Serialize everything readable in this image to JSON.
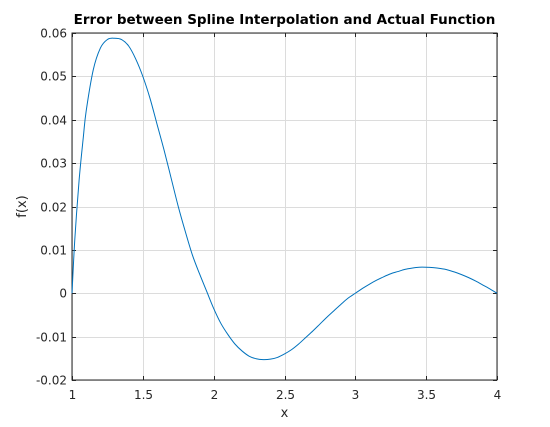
{
  "chart_data": {
    "type": "line",
    "title": "Error between Spline Interpolation and Actual Function",
    "xlabel": "x",
    "ylabel": "f(x)",
    "xlim": [
      1,
      4
    ],
    "ylim": [
      -0.02,
      0.06
    ],
    "xticks": [
      1,
      1.5,
      2,
      2.5,
      3,
      3.5,
      4
    ],
    "xtick_labels": [
      "1",
      "1.5",
      "2",
      "2.5",
      "3",
      "3.5",
      "4"
    ],
    "yticks": [
      -0.02,
      -0.01,
      0,
      0.01,
      0.02,
      0.03,
      0.04,
      0.05,
      0.06
    ],
    "ytick_labels": [
      "-0.02",
      "-0.01",
      "0",
      "0.01",
      "0.02",
      "0.03",
      "0.04",
      "0.05",
      "0.06"
    ],
    "grid": true,
    "line_color": "#0072BD",
    "series": [
      {
        "x": [
          1.0,
          1.02,
          1.05,
          1.08,
          1.1,
          1.15,
          1.2,
          1.25,
          1.3,
          1.35,
          1.4,
          1.45,
          1.5,
          1.55,
          1.6,
          1.65,
          1.7,
          1.75,
          1.8,
          1.85,
          1.9,
          1.95,
          2.0,
          2.05,
          2.1,
          2.15,
          2.2,
          2.25,
          2.3,
          2.35,
          2.4,
          2.45,
          2.5,
          2.55,
          2.6,
          2.65,
          2.7,
          2.75,
          2.8,
          2.85,
          2.9,
          2.95,
          3.0,
          3.05,
          3.1,
          3.15,
          3.2,
          3.25,
          3.3,
          3.35,
          3.4,
          3.45,
          3.5,
          3.55,
          3.6,
          3.65,
          3.7,
          3.75,
          3.8,
          3.85,
          3.9,
          3.95,
          4.0
        ],
        "y": [
          0.0,
          0.0125,
          0.026,
          0.036,
          0.042,
          0.0515,
          0.0565,
          0.0585,
          0.0588,
          0.0585,
          0.057,
          0.054,
          0.05,
          0.045,
          0.039,
          0.033,
          0.0265,
          0.02,
          0.0142,
          0.0088,
          0.0045,
          0.0005,
          -0.0035,
          -0.0069,
          -0.0095,
          -0.0117,
          -0.0133,
          -0.0145,
          -0.0151,
          -0.0153,
          -0.0152,
          -0.0148,
          -0.014,
          -0.013,
          -0.0117,
          -0.0102,
          -0.0087,
          -0.0071,
          -0.0055,
          -0.004,
          -0.0025,
          -0.0011,
          0.0,
          0.0011,
          0.0021,
          0.003,
          0.0038,
          0.0045,
          0.005,
          0.0055,
          0.0058,
          0.006,
          0.006,
          0.0059,
          0.0057,
          0.0054,
          0.0049,
          0.0043,
          0.0036,
          0.0028,
          0.0019,
          0.001,
          0.0
        ]
      }
    ]
  }
}
